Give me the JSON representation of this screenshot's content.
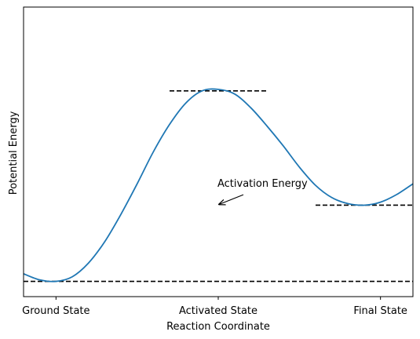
{
  "chart_data": {
    "type": "line",
    "title": "",
    "xlabel": "Reaction Coordinate",
    "ylabel": "Potential Energy",
    "xlim": [
      -0.2,
      2.2
    ],
    "ylim": [
      -0.1,
      1.8
    ],
    "x_ticks": [
      {
        "value": 0,
        "label": "Ground State"
      },
      {
        "value": 1,
        "label": "Activated State"
      },
      {
        "value": 2,
        "label": "Final State"
      }
    ],
    "grid": false,
    "series": [
      {
        "color": "#1f77b4",
        "x": [
          -0.2,
          -0.1,
          0,
          0.1,
          0.2,
          0.3,
          0.4,
          0.5,
          0.6,
          0.7,
          0.8,
          0.9,
          1.0,
          1.1,
          1.2,
          1.3,
          1.4,
          1.5,
          1.6,
          1.7,
          1.8,
          1.9,
          2.0,
          2.1,
          2.2
        ],
        "y": [
          0.05,
          0.01,
          0.0,
          0.03,
          0.12,
          0.26,
          0.44,
          0.64,
          0.85,
          1.03,
          1.17,
          1.25,
          1.26,
          1.23,
          1.14,
          1.02,
          0.89,
          0.75,
          0.63,
          0.55,
          0.51,
          0.5,
          0.52,
          0.57,
          0.64
        ]
      }
    ],
    "reference_lines": [
      {
        "y": 0.0,
        "x_from": -0.2,
        "x_to": 2.2,
        "style": "dashed",
        "color": "#000000"
      },
      {
        "y": 1.25,
        "x_from": 0.7,
        "x_to": 1.3,
        "style": "dashed",
        "color": "#000000"
      },
      {
        "y": 0.5,
        "x_from": 1.6,
        "x_to": 2.2,
        "style": "dashed",
        "color": "#000000"
      }
    ],
    "annotations": [
      {
        "text": "Activation Energy",
        "text_x": 1.0,
        "text_y": 0.62,
        "arrow_to_x": 1.0,
        "arrow_to_y": 0.5
      }
    ]
  }
}
